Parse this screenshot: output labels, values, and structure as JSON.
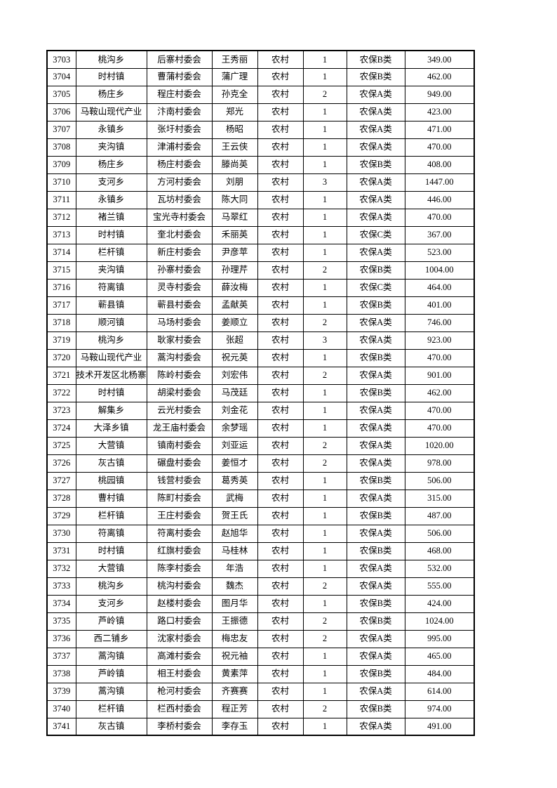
{
  "page": {
    "table": {
      "rows": [
        [
          "3703",
          "桃沟乡",
          "后寨村委会",
          "王秀丽",
          "农村",
          "1",
          "农保B类",
          "349.00"
        ],
        [
          "3704",
          "时村镇",
          "曹蒲村委会",
          "蒲广理",
          "农村",
          "1",
          "农保B类",
          "462.00"
        ],
        [
          "3705",
          "杨庄乡",
          "程庄村委会",
          "孙克全",
          "农村",
          "2",
          "农保A类",
          "949.00"
        ],
        [
          "3706",
          "马鞍山现代产业",
          "汴南村委会",
          "郑光",
          "农村",
          "1",
          "农保A类",
          "423.00"
        ],
        [
          "3707",
          "永镇乡",
          "张圩村委会",
          "杨昭",
          "农村",
          "1",
          "农保A类",
          "471.00"
        ],
        [
          "3708",
          "夹沟镇",
          "津浦村委会",
          "王云侠",
          "农村",
          "1",
          "农保A类",
          "470.00"
        ],
        [
          "3709",
          "杨庄乡",
          "杨庄村委会",
          "滕尚英",
          "农村",
          "1",
          "农保B类",
          "408.00"
        ],
        [
          "3710",
          "支河乡",
          "方河村委会",
          "刘朋",
          "农村",
          "3",
          "农保A类",
          "1447.00"
        ],
        [
          "3711",
          "永镇乡",
          "瓦坊村委会",
          "陈大同",
          "农村",
          "1",
          "农保A类",
          "446.00"
        ],
        [
          "3712",
          "褚兰镇",
          "宝光寺村委会",
          "马翠红",
          "农村",
          "1",
          "农保A类",
          "470.00"
        ],
        [
          "3713",
          "时村镇",
          "奎北村委会",
          "禾丽英",
          "农村",
          "1",
          "农保C类",
          "367.00"
        ],
        [
          "3714",
          "栏杆镇",
          "新庄村委会",
          "尹彦苹",
          "农村",
          "1",
          "农保A类",
          "523.00"
        ],
        [
          "3715",
          "夹沟镇",
          "孙寨村委会",
          "孙理芹",
          "农村",
          "2",
          "农保B类",
          "1004.00"
        ],
        [
          "3716",
          "符离镇",
          "灵寺村委会",
          "薛汝梅",
          "农村",
          "1",
          "农保C类",
          "464.00"
        ],
        [
          "3717",
          "蕲县镇",
          "蕲县村委会",
          "孟献英",
          "农村",
          "1",
          "农保B类",
          "401.00"
        ],
        [
          "3718",
          "顺河镇",
          "马场村委会",
          "姜顺立",
          "农村",
          "2",
          "农保A类",
          "746.00"
        ],
        [
          "3719",
          "桃沟乡",
          "耿家村委会",
          "张超",
          "农村",
          "3",
          "农保A类",
          "923.00"
        ],
        [
          "3720",
          "马鞍山现代产业",
          "蒿沟村委会",
          "祝元英",
          "农村",
          "1",
          "农保B类",
          "470.00"
        ],
        [
          "3721",
          "技术开发区北杨寨",
          "陈岭村委会",
          "刘宏伟",
          "农村",
          "2",
          "农保A类",
          "901.00"
        ],
        [
          "3722",
          "时村镇",
          "胡梁村委会",
          "马茂廷",
          "农村",
          "1",
          "农保B类",
          "462.00"
        ],
        [
          "3723",
          "解集乡",
          "云光村委会",
          "刘金花",
          "农村",
          "1",
          "农保A类",
          "470.00"
        ],
        [
          "3724",
          "大泽乡镇",
          "龙王庙村委会",
          "余梦瑶",
          "农村",
          "1",
          "农保A类",
          "470.00"
        ],
        [
          "3725",
          "大营镇",
          "镇南村委会",
          "刘亚运",
          "农村",
          "2",
          "农保A类",
          "1020.00"
        ],
        [
          "3726",
          "灰古镇",
          "碾盘村委会",
          "姜恒才",
          "农村",
          "2",
          "农保A类",
          "978.00"
        ],
        [
          "3727",
          "桃园镇",
          "钱营村委会",
          "葛秀英",
          "农村",
          "1",
          "农保B类",
          "506.00"
        ],
        [
          "3728",
          "曹村镇",
          "陈町村委会",
          "武梅",
          "农村",
          "1",
          "农保A类",
          "315.00"
        ],
        [
          "3729",
          "栏杆镇",
          "王庄村委会",
          "贺王氏",
          "农村",
          "1",
          "农保B类",
          "487.00"
        ],
        [
          "3730",
          "符离镇",
          "符离村委会",
          "赵旭华",
          "农村",
          "1",
          "农保A类",
          "506.00"
        ],
        [
          "3731",
          "时村镇",
          "红旗村委会",
          "马桂林",
          "农村",
          "1",
          "农保B类",
          "468.00"
        ],
        [
          "3732",
          "大营镇",
          "陈李村委会",
          "年浩",
          "农村",
          "1",
          "农保A类",
          "532.00"
        ],
        [
          "3733",
          "桃沟乡",
          "桃沟村委会",
          "魏杰",
          "农村",
          "2",
          "农保A类",
          "555.00"
        ],
        [
          "3734",
          "支河乡",
          "赵楼村委会",
          "图月华",
          "农村",
          "1",
          "农保B类",
          "424.00"
        ],
        [
          "3735",
          "芦岭镇",
          "路口村委会",
          "王振德",
          "农村",
          "2",
          "农保B类",
          "1024.00"
        ],
        [
          "3736",
          "西二铺乡",
          "沈家村委会",
          "梅忠友",
          "农村",
          "2",
          "农保A类",
          "995.00"
        ],
        [
          "3737",
          "蒿沟镇",
          "高滩村委会",
          "祝元袖",
          "农村",
          "1",
          "农保A类",
          "465.00"
        ],
        [
          "3738",
          "芦岭镇",
          "相王村委会",
          "黄素萍",
          "农村",
          "1",
          "农保B类",
          "484.00"
        ],
        [
          "3739",
          "蒿沟镇",
          "枪河村委会",
          "齐赛赛",
          "农村",
          "1",
          "农保A类",
          "614.00"
        ],
        [
          "3740",
          "栏杆镇",
          "栏西村委会",
          "程正芳",
          "农村",
          "2",
          "农保B类",
          "974.00"
        ],
        [
          "3741",
          "灰古镇",
          "李桥村委会",
          "李存玉",
          "农村",
          "1",
          "农保A类",
          "491.00"
        ]
      ],
      "colors": {
        "text": "#000000",
        "border": "#000000",
        "page_background": "#ffffff"
      }
    }
  }
}
